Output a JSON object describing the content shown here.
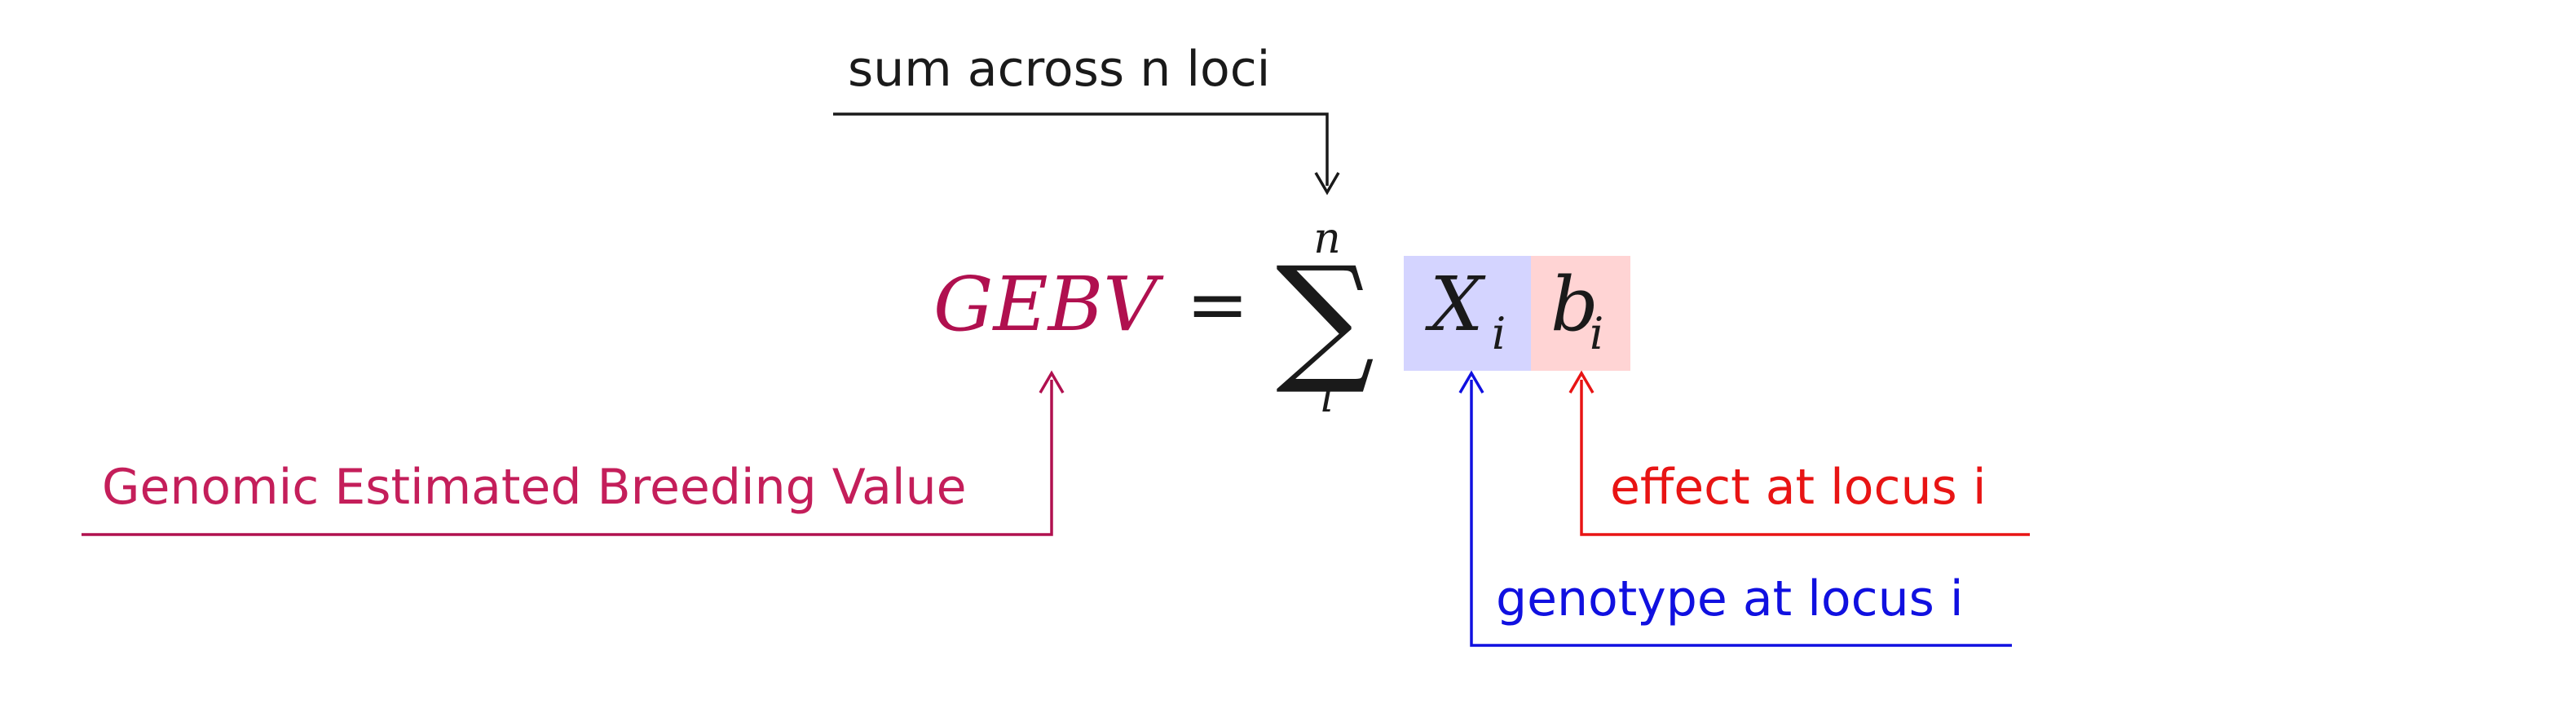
{
  "equation": {
    "lhs": "GEBV",
    "equals": "=",
    "sigma": "∑",
    "sum_upper": "n",
    "sum_lower": "i",
    "x_symbol": "X",
    "x_subscript": "i",
    "b_symbol": "b",
    "b_subscript": "i"
  },
  "annotations": {
    "sum": "sum across n loci",
    "gebv": "Genomic Estimated Breeding Value",
    "genotype": "genotype at locus i",
    "effect": "effect at locus i"
  },
  "colors": {
    "gebv": "#b0104f",
    "gebv_label": "#c41e5a",
    "genotype": "#1010e0",
    "effect": "#e81414",
    "x_box": "#d4d4ff",
    "b_box": "#ffd4d4",
    "ink": "#1a1a1a"
  }
}
